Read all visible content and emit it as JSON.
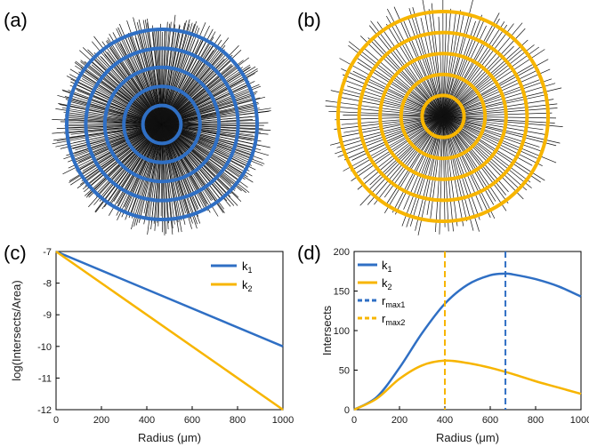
{
  "panel_labels": {
    "a": "(a)",
    "b": "(b)",
    "c": "(c)",
    "d": "(d)"
  },
  "colors": {
    "blue": "#2f6fc4",
    "yellow": "#f7b500",
    "radial_line": "#111111"
  },
  "chart_data": [
    {
      "panel": "(a)",
      "type": "diagram",
      "description_rings": 5,
      "ring_color": "#2f6fc4",
      "density": "high"
    },
    {
      "panel": "(b)",
      "type": "diagram",
      "description_rings": 5,
      "ring_color": "#f7b500",
      "density": "low"
    },
    {
      "panel": "(c)",
      "type": "line",
      "xlabel": "Radius (μm)",
      "ylabel": "log(Intersects/Area)",
      "xlim": [
        0,
        1000
      ],
      "ylim": [
        -12,
        -7
      ],
      "xticks": [
        0,
        200,
        400,
        600,
        800,
        1000
      ],
      "yticks": [
        -7,
        -8,
        -9,
        -10,
        -11,
        -12
      ],
      "legend_position": "top-right",
      "series": [
        {
          "name": "k",
          "sub": "1",
          "color": "#2f6fc4",
          "x": [
            0,
            1000
          ],
          "y": [
            -7,
            -10
          ]
        },
        {
          "name": "k",
          "sub": "2",
          "color": "#f7b500",
          "x": [
            0,
            1000
          ],
          "y": [
            -7,
            -12
          ]
        }
      ]
    },
    {
      "panel": "(d)",
      "type": "line",
      "xlabel": "Radius (μm)",
      "ylabel": "Intersects",
      "xlim": [
        0,
        1000
      ],
      "ylim": [
        0,
        200
      ],
      "xticks": [
        0,
        200,
        400,
        600,
        800,
        1000
      ],
      "yticks": [
        0,
        50,
        100,
        150,
        200
      ],
      "legend_position": "top-left",
      "series": [
        {
          "name": "k",
          "sub": "1",
          "color": "#2f6fc4",
          "style": "solid",
          "x": [
            0,
            100,
            200,
            300,
            400,
            500,
            600,
            667,
            700,
            800,
            900,
            1000
          ],
          "y": [
            0,
            16,
            53,
            97,
            134,
            158,
            170,
            172,
            171,
            165,
            156,
            143
          ]
        },
        {
          "name": "k",
          "sub": "2",
          "color": "#f7b500",
          "style": "solid",
          "x": [
            0,
            100,
            200,
            300,
            400,
            500,
            600,
            700,
            800,
            900,
            1000
          ],
          "y": [
            0,
            14,
            39,
            56,
            62,
            59,
            53,
            45,
            36,
            28,
            20
          ]
        },
        {
          "name": "r",
          "sub": "max1",
          "color": "#2f6fc4",
          "style": "dashed",
          "x_value": 667
        },
        {
          "name": "r",
          "sub": "max2",
          "color": "#f7b500",
          "style": "dashed",
          "x_value": 400
        }
      ]
    }
  ]
}
